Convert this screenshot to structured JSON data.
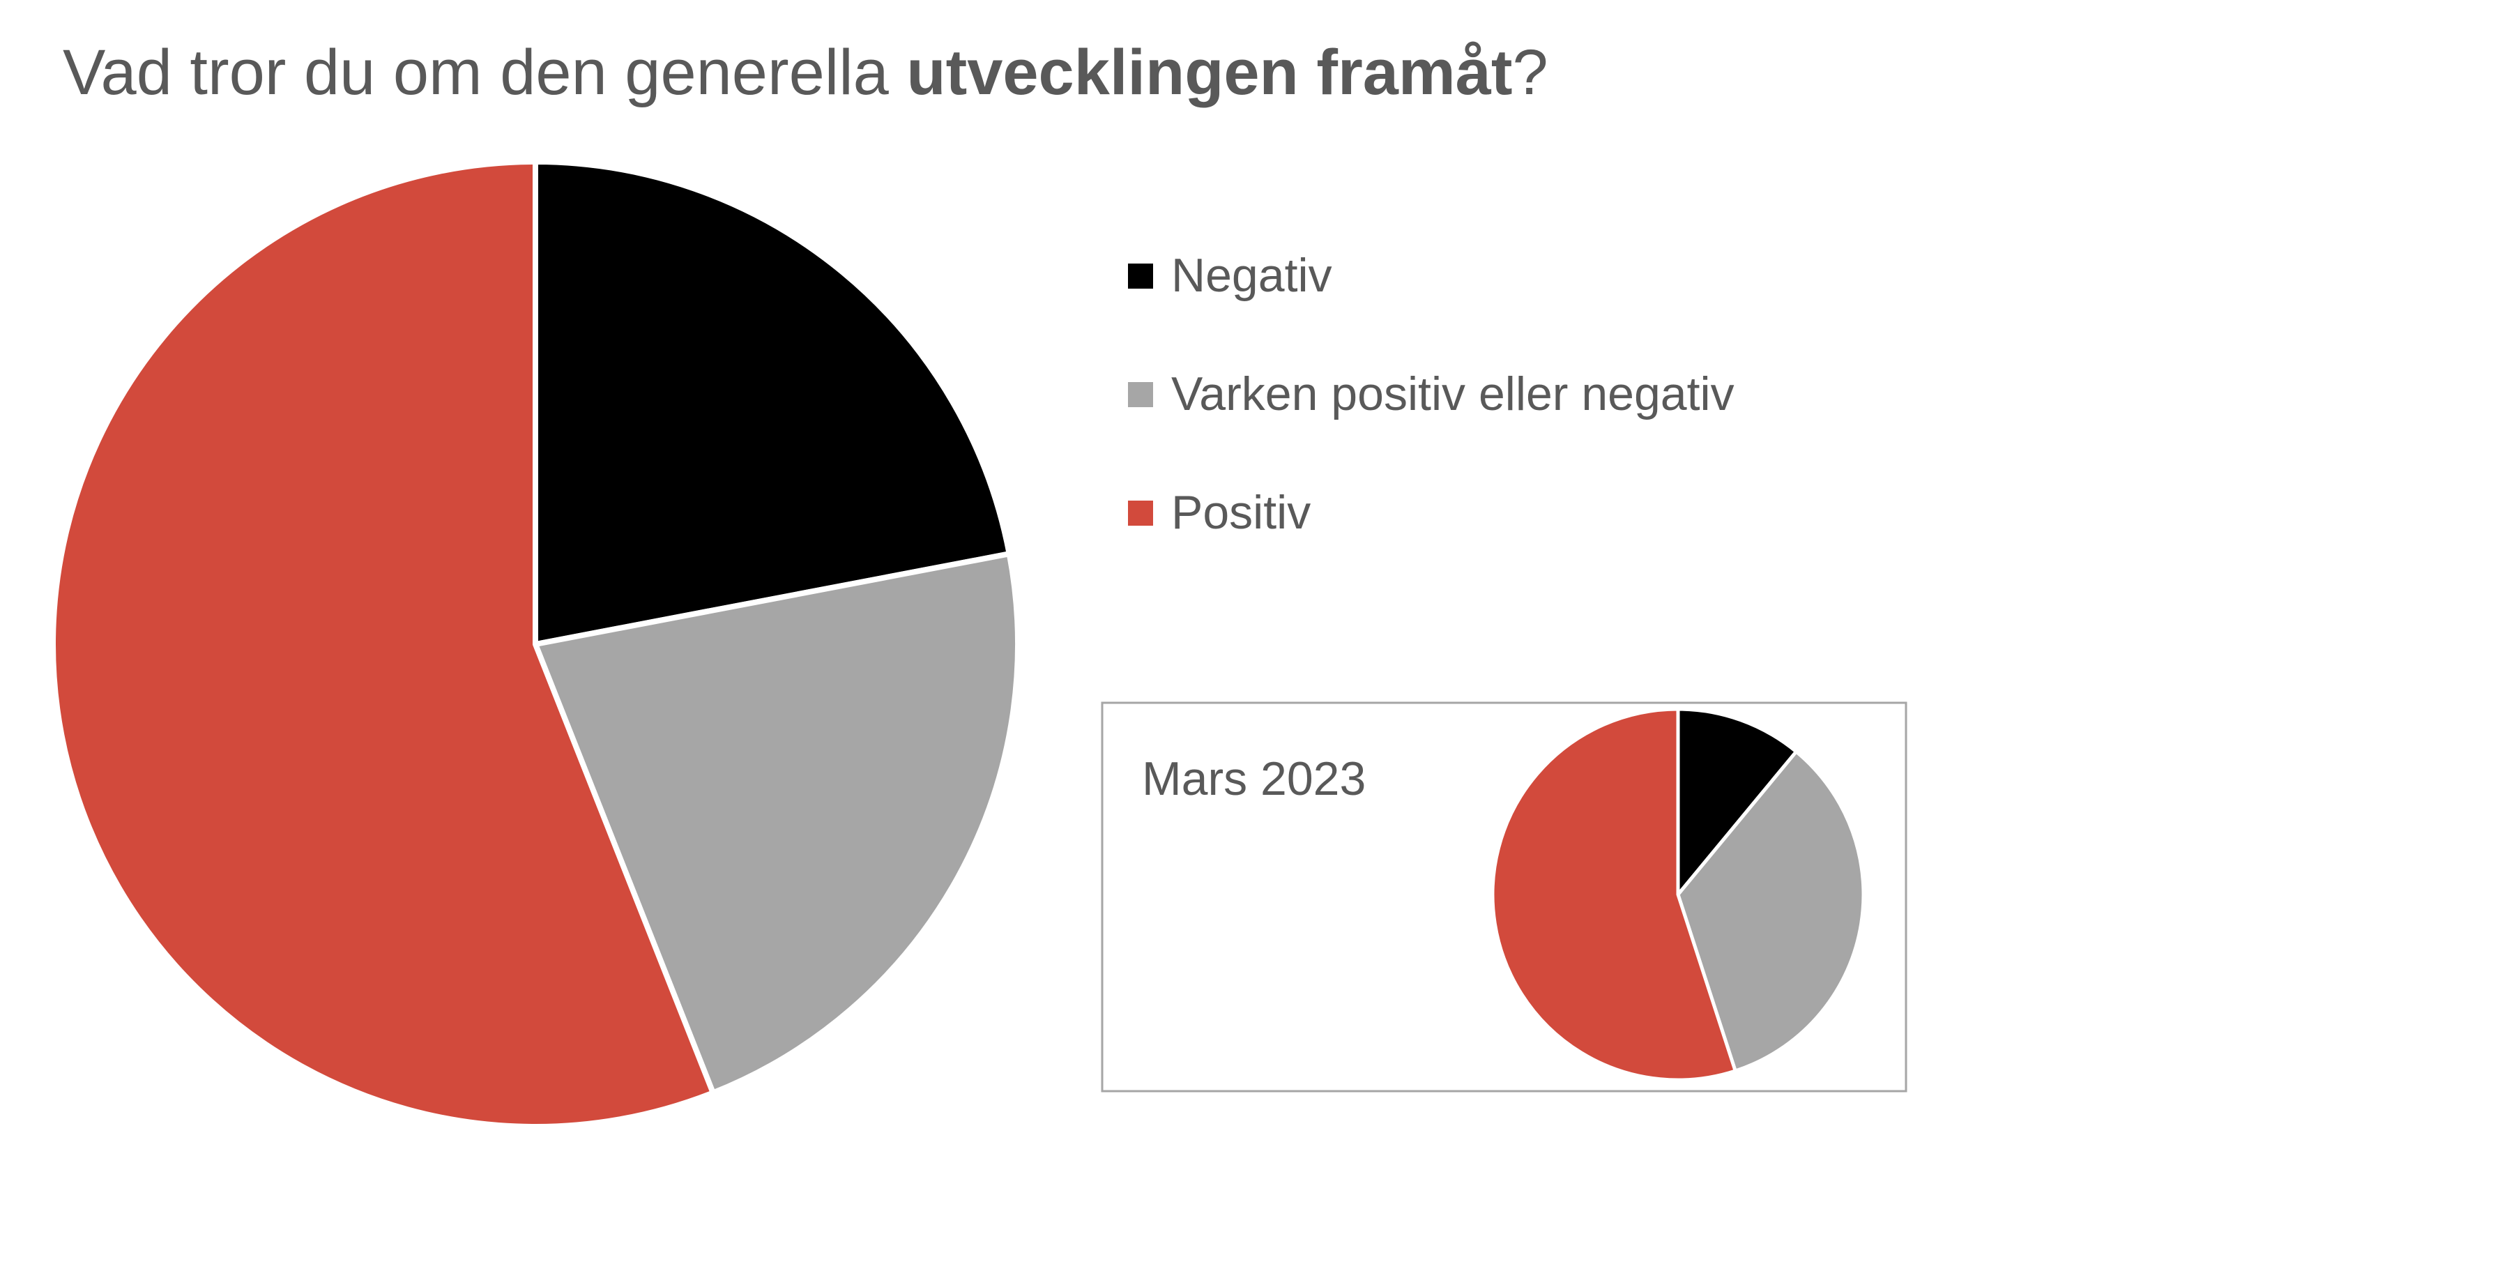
{
  "chart_data": [
    {
      "type": "pie",
      "title_regular": "Vad tror du om den generella ",
      "title_bold": "utvecklingen framåt",
      "title_end": "?",
      "categories": [
        "Negativ",
        "Varken positiv eller negativ",
        "Positiv"
      ],
      "values": [
        22,
        22,
        56
      ],
      "colors": [
        "#000000",
        "#a6a6a6",
        "#d24a3c"
      ],
      "legend_position": "right"
    },
    {
      "type": "pie",
      "title": "Mars 2023",
      "categories": [
        "Negativ",
        "Varken positiv eller negativ",
        "Positiv"
      ],
      "values": [
        11,
        34,
        55
      ],
      "colors": [
        "#000000",
        "#a6a6a6",
        "#d24a3c"
      ]
    }
  ]
}
